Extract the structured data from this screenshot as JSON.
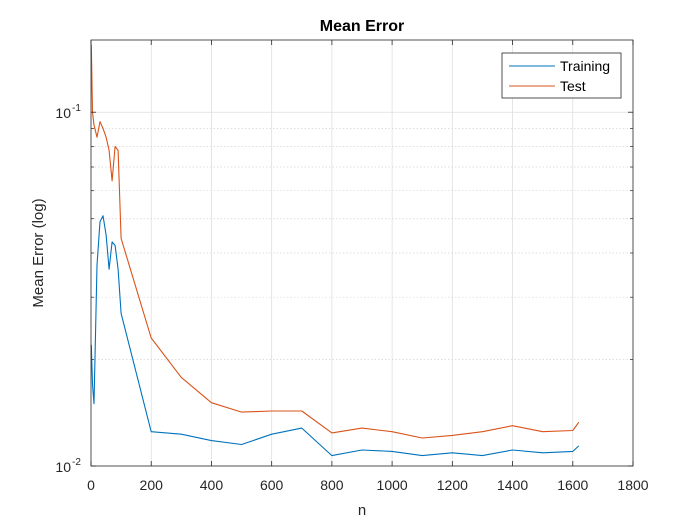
{
  "chart_data": {
    "type": "line",
    "title": "Mean Error",
    "xlabel": "n",
    "ylabel": "Mean Error (log)",
    "xlim": [
      0,
      1800
    ],
    "ylim": [
      0.01,
      0.16
    ],
    "yscale": "log",
    "grid": true,
    "minor_grid": true,
    "legend_position": "top-right",
    "x_ticks": [
      0,
      200,
      400,
      600,
      800,
      1000,
      1200,
      1400,
      1600,
      1800
    ],
    "x_tick_labels": [
      "0",
      "200",
      "400",
      "600",
      "800",
      "1000",
      "1200",
      "1400",
      "1600",
      "1800"
    ],
    "y_ticks": [
      {
        "value": 0.1,
        "base": "10",
        "exp": "-1"
      },
      {
        "value": 0.01,
        "base": "10",
        "exp": "-2"
      }
    ],
    "series": [
      {
        "name": "Training",
        "color": "#0072BD",
        "x": [
          1,
          5,
          10,
          20,
          30,
          40,
          50,
          60,
          70,
          80,
          90,
          100,
          200,
          300,
          400,
          500,
          600,
          700,
          800,
          900,
          1000,
          1100,
          1200,
          1300,
          1400,
          1500,
          1600,
          1620
        ],
        "y": [
          0.022,
          0.017,
          0.015,
          0.037,
          0.049,
          0.051,
          0.045,
          0.036,
          0.043,
          0.042,
          0.036,
          0.027,
          0.0125,
          0.0123,
          0.0118,
          0.0115,
          0.0123,
          0.0128,
          0.0107,
          0.0111,
          0.011,
          0.0107,
          0.0109,
          0.0107,
          0.0111,
          0.0109,
          0.011,
          0.0114
        ]
      },
      {
        "name": "Test",
        "color": "#D95319",
        "x": [
          1,
          5,
          10,
          20,
          30,
          40,
          50,
          60,
          70,
          80,
          90,
          100,
          200,
          300,
          400,
          500,
          600,
          700,
          800,
          900,
          1000,
          1100,
          1200,
          1300,
          1400,
          1500,
          1600,
          1620
        ],
        "y": [
          0.155,
          0.1,
          0.092,
          0.085,
          0.094,
          0.09,
          0.085,
          0.078,
          0.064,
          0.08,
          0.078,
          0.044,
          0.023,
          0.0178,
          0.0151,
          0.0142,
          0.0143,
          0.0143,
          0.0124,
          0.0128,
          0.0125,
          0.012,
          0.0122,
          0.0125,
          0.013,
          0.0125,
          0.0126,
          0.0133
        ]
      }
    ]
  }
}
